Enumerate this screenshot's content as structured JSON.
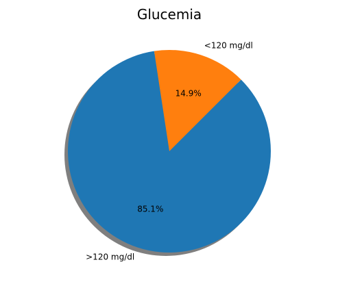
{
  "chart_data": {
    "type": "pie",
    "title": "Glucemia",
    "slices": [
      {
        "label": "<120 mg/dl",
        "value": 14.9,
        "pct_label": "14.9%",
        "color": "#ff7f0e"
      },
      {
        "label": ">120 mg/dl",
        "value": 85.1,
        "pct_label": "85.1%",
        "color": "#1f77b4"
      }
    ],
    "shadow": true
  }
}
